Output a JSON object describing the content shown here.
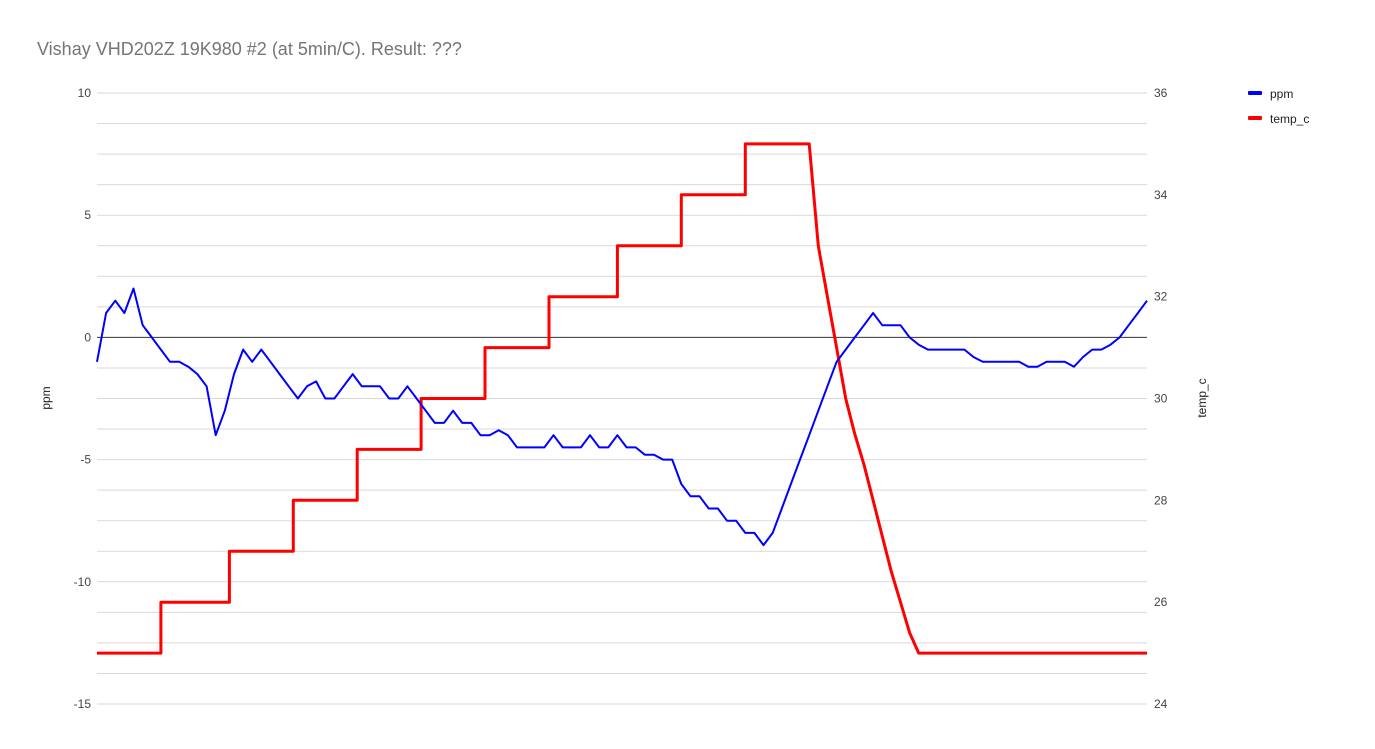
{
  "chart_data": {
    "type": "line",
    "title": "Vishay VHD202Z 19K980 #2 (at 5min/C).  Result: ???",
    "y_left_label": "ppm",
    "y_right_label": "temp_c",
    "y_left_range": [
      -15,
      10
    ],
    "y_right_range": [
      24,
      36
    ],
    "y_left_ticks": [
      "10",
      "5",
      "0",
      "-5",
      "-10",
      "-15"
    ],
    "y_right_ticks": [
      "36",
      "34",
      "32",
      "30",
      "28",
      "26",
      "24"
    ],
    "grid": true,
    "legend_position": "top-right",
    "series": [
      {
        "name": "ppm",
        "axis": "left",
        "color": "#0000ff",
        "points": [
          [
            0.0,
            -1.0
          ],
          [
            0.01,
            1.0
          ],
          [
            0.02,
            1.5
          ],
          [
            0.03,
            1.0
          ],
          [
            0.04,
            2.0
          ],
          [
            0.05,
            0.5
          ],
          [
            0.06,
            0.0
          ],
          [
            0.07,
            -0.5
          ],
          [
            0.08,
            -1.0
          ],
          [
            0.09,
            -1.0
          ],
          [
            0.1,
            -1.2
          ],
          [
            0.11,
            -1.5
          ],
          [
            0.12,
            -2.0
          ],
          [
            0.13,
            -4.0
          ],
          [
            0.14,
            -3.0
          ],
          [
            0.15,
            -1.5
          ],
          [
            0.16,
            -0.5
          ],
          [
            0.17,
            -1.0
          ],
          [
            0.18,
            -0.5
          ],
          [
            0.19,
            -1.0
          ],
          [
            0.2,
            -1.5
          ],
          [
            0.21,
            -2.0
          ],
          [
            0.22,
            -2.5
          ],
          [
            0.23,
            -2.0
          ],
          [
            0.24,
            -1.8
          ],
          [
            0.25,
            -2.5
          ],
          [
            0.26,
            -2.5
          ],
          [
            0.27,
            -2.0
          ],
          [
            0.28,
            -1.5
          ],
          [
            0.29,
            -2.0
          ],
          [
            0.3,
            -2.0
          ],
          [
            0.31,
            -2.0
          ],
          [
            0.32,
            -2.5
          ],
          [
            0.33,
            -2.5
          ],
          [
            0.34,
            -2.0
          ],
          [
            0.35,
            -2.5
          ],
          [
            0.36,
            -3.0
          ],
          [
            0.37,
            -3.5
          ],
          [
            0.38,
            -3.5
          ],
          [
            0.39,
            -3.0
          ],
          [
            0.4,
            -3.5
          ],
          [
            0.41,
            -3.5
          ],
          [
            0.42,
            -4.0
          ],
          [
            0.43,
            -4.0
          ],
          [
            0.44,
            -3.8
          ],
          [
            0.45,
            -4.0
          ],
          [
            0.46,
            -4.5
          ],
          [
            0.47,
            -4.5
          ],
          [
            0.48,
            -4.5
          ],
          [
            0.49,
            -4.5
          ],
          [
            0.5,
            -4.0
          ],
          [
            0.51,
            -4.5
          ],
          [
            0.52,
            -4.5
          ],
          [
            0.53,
            -4.5
          ],
          [
            0.54,
            -4.0
          ],
          [
            0.55,
            -4.5
          ],
          [
            0.56,
            -4.5
          ],
          [
            0.57,
            -4.0
          ],
          [
            0.58,
            -4.5
          ],
          [
            0.59,
            -4.5
          ],
          [
            0.6,
            -4.8
          ],
          [
            0.61,
            -4.8
          ],
          [
            0.62,
            -5.0
          ],
          [
            0.63,
            -5.0
          ],
          [
            0.64,
            -6.0
          ],
          [
            0.65,
            -6.5
          ],
          [
            0.66,
            -6.5
          ],
          [
            0.67,
            -7.0
          ],
          [
            0.68,
            -7.0
          ],
          [
            0.69,
            -7.5
          ],
          [
            0.7,
            -7.5
          ],
          [
            0.71,
            -8.0
          ],
          [
            0.72,
            -8.0
          ],
          [
            0.73,
            -8.5
          ],
          [
            0.74,
            -8.0
          ],
          [
            0.75,
            -7.0
          ],
          [
            0.76,
            -6.0
          ],
          [
            0.77,
            -5.0
          ],
          [
            0.78,
            -4.0
          ],
          [
            0.79,
            -3.0
          ],
          [
            0.8,
            -2.0
          ],
          [
            0.81,
            -1.0
          ],
          [
            0.82,
            -0.5
          ],
          [
            0.83,
            0.0
          ],
          [
            0.84,
            0.5
          ],
          [
            0.85,
            1.0
          ],
          [
            0.86,
            0.5
          ],
          [
            0.87,
            0.5
          ],
          [
            0.88,
            0.5
          ],
          [
            0.89,
            0.0
          ],
          [
            0.9,
            -0.3
          ],
          [
            0.91,
            -0.5
          ],
          [
            0.92,
            -0.5
          ],
          [
            0.93,
            -0.5
          ],
          [
            0.94,
            -0.5
          ],
          [
            0.95,
            -0.5
          ],
          [
            0.96,
            -0.8
          ],
          [
            0.97,
            -1.0
          ],
          [
            0.98,
            -1.0
          ],
          [
            0.99,
            -1.0
          ],
          [
            1.0,
            -1.0
          ],
          [
            1.01,
            -1.0
          ],
          [
            1.02,
            -1.2
          ],
          [
            1.03,
            -1.2
          ],
          [
            1.04,
            -1.0
          ],
          [
            1.05,
            -1.0
          ],
          [
            1.06,
            -1.0
          ],
          [
            1.07,
            -1.2
          ],
          [
            1.08,
            -0.8
          ],
          [
            1.09,
            -0.5
          ],
          [
            1.1,
            -0.5
          ],
          [
            1.11,
            -0.3
          ],
          [
            1.12,
            0.0
          ],
          [
            1.13,
            0.5
          ],
          [
            1.14,
            1.0
          ],
          [
            1.15,
            1.5
          ]
        ]
      },
      {
        "name": "temp_c",
        "axis": "right",
        "color": "#ff0000",
        "points": [
          [
            0.0,
            25.0
          ],
          [
            0.07,
            25.0
          ],
          [
            0.07,
            26.0
          ],
          [
            0.145,
            26.0
          ],
          [
            0.145,
            27.0
          ],
          [
            0.215,
            27.0
          ],
          [
            0.215,
            28.0
          ],
          [
            0.285,
            28.0
          ],
          [
            0.285,
            29.0
          ],
          [
            0.355,
            29.0
          ],
          [
            0.355,
            30.0
          ],
          [
            0.425,
            30.0
          ],
          [
            0.425,
            31.0
          ],
          [
            0.495,
            31.0
          ],
          [
            0.495,
            32.0
          ],
          [
            0.57,
            32.0
          ],
          [
            0.57,
            33.0
          ],
          [
            0.64,
            33.0
          ],
          [
            0.64,
            34.0
          ],
          [
            0.71,
            34.0
          ],
          [
            0.71,
            35.0
          ],
          [
            0.78,
            35.0
          ],
          [
            0.79,
            33.0
          ],
          [
            0.8,
            32.0
          ],
          [
            0.81,
            31.0
          ],
          [
            0.82,
            30.0
          ],
          [
            0.83,
            29.3
          ],
          [
            0.84,
            28.7
          ],
          [
            0.85,
            28.0
          ],
          [
            0.86,
            27.3
          ],
          [
            0.87,
            26.6
          ],
          [
            0.88,
            26.0
          ],
          [
            0.89,
            25.4
          ],
          [
            0.9,
            25.0
          ],
          [
            1.15,
            25.0
          ]
        ]
      }
    ]
  }
}
